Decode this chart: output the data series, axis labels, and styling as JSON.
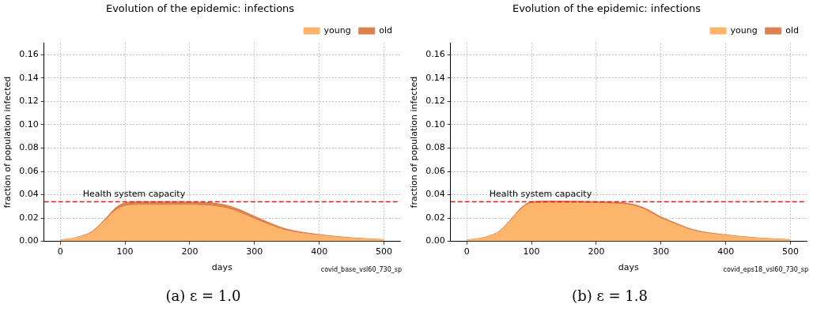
{
  "chart_data": [
    {
      "type": "area",
      "title": "Evolution of the epidemic: infections",
      "xlabel": "days",
      "ylabel": "fraction of population infected",
      "stacked": true,
      "x": [
        0,
        25,
        50,
        70,
        85,
        100,
        125,
        150,
        200,
        250,
        275,
        300,
        325,
        350,
        400,
        450,
        500
      ],
      "series": [
        {
          "name": "young",
          "color": "#fdb56b",
          "values": [
            0.001,
            0.003,
            0.008,
            0.018,
            0.026,
            0.03,
            0.031,
            0.031,
            0.031,
            0.029,
            0.025,
            0.019,
            0.0135,
            0.009,
            0.005,
            0.0027,
            0.0013
          ]
        },
        {
          "name": "old",
          "color": "#dc8250",
          "values": [
            0.0001,
            0.0003,
            0.0008,
            0.0015,
            0.0025,
            0.003,
            0.003,
            0.003,
            0.0028,
            0.0028,
            0.0027,
            0.0025,
            0.002,
            0.0015,
            0.0008,
            0.0004,
            0.0002
          ]
        }
      ],
      "xlim": [
        -25,
        525
      ],
      "xticks": [
        0,
        100,
        200,
        300,
        400,
        500
      ],
      "ylim": [
        0,
        0.17
      ],
      "yticks": [
        {
          "value": 0,
          "label": "0.00"
        },
        {
          "value": 0.02,
          "label": "0.02"
        },
        {
          "value": 0.04,
          "label": "0.04"
        },
        {
          "value": 0.06,
          "label": "0.06"
        },
        {
          "value": 0.08,
          "label": "0.08"
        },
        {
          "value": 0.1,
          "label": "0.10"
        },
        {
          "value": 0.12,
          "label": "0.12"
        },
        {
          "value": 0.14,
          "label": "0.14"
        },
        {
          "value": 0.16,
          "label": "0.16"
        }
      ],
      "ref_lines": [
        {
          "axis": "y",
          "value": 0.034,
          "label": "Health system capacity",
          "color": "#e41a1c",
          "line_style": "dashed"
        }
      ],
      "grid": true,
      "legend": "top right",
      "annotations": [
        "covid_base_vsl60_730_sp",
        "(a) ε = 1.0"
      ]
    },
    {
      "type": "area",
      "title": "Evolution of the epidemic: infections",
      "xlabel": "days",
      "ylabel": "fraction of population infected",
      "stacked": true,
      "x": [
        0,
        25,
        50,
        70,
        85,
        100,
        125,
        150,
        200,
        250,
        275,
        300,
        325,
        350,
        400,
        450,
        500
      ],
      "series": [
        {
          "name": "young",
          "color": "#fdb56b",
          "values": [
            0.001,
            0.003,
            0.008,
            0.019,
            0.028,
            0.0325,
            0.033,
            0.033,
            0.0325,
            0.031,
            0.027,
            0.0195,
            0.014,
            0.009,
            0.005,
            0.0027,
            0.0013
          ]
        },
        {
          "name": "old",
          "color": "#dc8250",
          "values": [
            0.0001,
            0.0002,
            0.0006,
            0.001,
            0.0013,
            0.0015,
            0.0015,
            0.0015,
            0.0015,
            0.0015,
            0.0015,
            0.0015,
            0.0012,
            0.001,
            0.0006,
            0.0003,
            0.0002
          ]
        }
      ],
      "xlim": [
        -25,
        525
      ],
      "xticks": [
        0,
        100,
        200,
        300,
        400,
        500
      ],
      "ylim": [
        0,
        0.17
      ],
      "yticks": [
        {
          "value": 0,
          "label": "0.00"
        },
        {
          "value": 0.02,
          "label": "0.02"
        },
        {
          "value": 0.04,
          "label": "0.04"
        },
        {
          "value": 0.06,
          "label": "0.06"
        },
        {
          "value": 0.08,
          "label": "0.08"
        },
        {
          "value": 0.1,
          "label": "0.10"
        },
        {
          "value": 0.12,
          "label": "0.12"
        },
        {
          "value": 0.14,
          "label": "0.14"
        },
        {
          "value": 0.16,
          "label": "0.16"
        }
      ],
      "ref_lines": [
        {
          "axis": "y",
          "value": 0.034,
          "label": "Health system capacity",
          "color": "#e41a1c",
          "line_style": "dashed"
        }
      ],
      "grid": true,
      "legend": "top right",
      "annotations": [
        "covid_eps18_vsl60_730_sp",
        "(b) ε = 1.8"
      ]
    }
  ]
}
